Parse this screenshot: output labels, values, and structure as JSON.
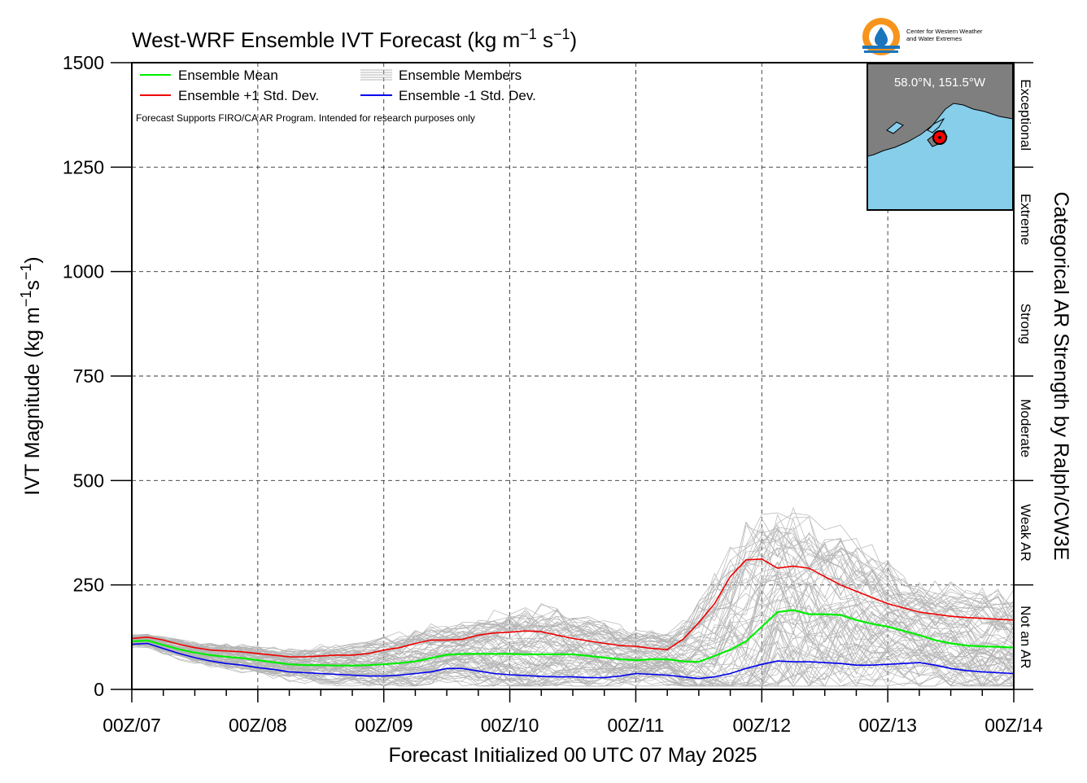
{
  "chart_data": {
    "type": "line",
    "title_main": "West-WRF Ensemble IVT Forecast (kg m",
    "title_exp1": "−1",
    "title_mid": " s",
    "title_exp2": "−1",
    "title_end": ")",
    "xlabel": "Forecast Initialized 00 UTC 07 May 2025",
    "ylabel_main": "IVT Magnitude (kg m",
    "ylabel_exp1": "−1",
    "ylabel_mid": "s",
    "ylabel_exp2": "−1",
    "ylabel_end": ")",
    "right_label": "Categorical AR Strength by Ralph/CW3E",
    "note": "Forecast Supports FIRO/CA AR Program. Intended for research purposes only",
    "xlim": [
      0,
      168
    ],
    "ylim": [
      0,
      1500
    ],
    "x_major_ticks": [
      0,
      24,
      48,
      72,
      96,
      120,
      144,
      168
    ],
    "x_tick_labels": [
      "00Z/07",
      "00Z/08",
      "00Z/09",
      "00Z/10",
      "00Z/11",
      "00Z/12",
      "00Z/13",
      "00Z/14"
    ],
    "x_minor_step": 6,
    "y_ticks": [
      0,
      250,
      500,
      750,
      1000,
      1250,
      1500
    ],
    "y_tick_labels": [
      "0",
      "250",
      "500",
      "750",
      "1000",
      "1250",
      "1500"
    ],
    "grid": true,
    "legend_position": "top-left",
    "legend": [
      {
        "label": "Ensemble Mean",
        "color": "#00ee00"
      },
      {
        "label": "Ensemble +1 Std. Dev.",
        "color": "#ee0000"
      },
      {
        "label": "Ensemble Members",
        "color": "#b4b4b4"
      },
      {
        "label": "Ensemble -1 Std. Dev.",
        "color": "#0000ee"
      }
    ],
    "categories": [
      {
        "label": "Not an AR",
        "range": [
          0,
          250
        ]
      },
      {
        "label": "Weak AR",
        "range": [
          250,
          500
        ]
      },
      {
        "label": "Moderate",
        "range": [
          500,
          750
        ]
      },
      {
        "label": "Strong",
        "range": [
          750,
          1000
        ]
      },
      {
        "label": "Extreme",
        "range": [
          1000,
          1250
        ]
      },
      {
        "label": "Exceptional",
        "range": [
          1250,
          1500
        ]
      }
    ],
    "x": [
      0,
      3,
      6,
      9,
      12,
      15,
      18,
      21,
      24,
      27,
      30,
      33,
      36,
      39,
      42,
      45,
      48,
      51,
      54,
      57,
      60,
      63,
      66,
      69,
      72,
      75,
      78,
      81,
      84,
      87,
      90,
      93,
      96,
      99,
      102,
      105,
      108,
      111,
      114,
      117,
      120,
      123,
      126,
      129,
      132,
      135,
      138,
      141,
      144,
      147,
      150,
      153,
      156,
      159,
      162,
      165,
      168
    ],
    "series": [
      {
        "name": "Ensemble Mean",
        "color": "#00ee00",
        "values": [
          115,
          117,
          106,
          96,
          88,
          82,
          78,
          75,
          70,
          65,
          60,
          58,
          58,
          57,
          57,
          58,
          60,
          63,
          67,
          75,
          83,
          85,
          85,
          85,
          85,
          84,
          84,
          84,
          84,
          80,
          76,
          72,
          70,
          72,
          72,
          67,
          66,
          80,
          95,
          115,
          150,
          185,
          190,
          180,
          180,
          178,
          166,
          157,
          150,
          140,
          130,
          118,
          110,
          105,
          103,
          102,
          100
        ]
      },
      {
        "name": "Ensemble +1 Std. Dev.",
        "color": "#ee0000",
        "values": [
          122,
          125,
          118,
          108,
          100,
          94,
          92,
          90,
          86,
          82,
          78,
          78,
          80,
          82,
          82,
          86,
          94,
          100,
          110,
          118,
          118,
          120,
          130,
          135,
          137,
          140,
          138,
          130,
          122,
          116,
          110,
          105,
          103,
          98,
          95,
          120,
          160,
          205,
          270,
          310,
          312,
          290,
          295,
          290,
          270,
          250,
          235,
          220,
          205,
          195,
          185,
          180,
          175,
          172,
          170,
          168,
          166
        ]
      },
      {
        "name": "Ensemble -1 Std. Dev.",
        "color": "#0000ee",
        "values": [
          108,
          110,
          98,
          86,
          76,
          68,
          62,
          58,
          52,
          48,
          42,
          40,
          38,
          36,
          34,
          32,
          32,
          34,
          38,
          42,
          50,
          50,
          44,
          38,
          35,
          33,
          31,
          30,
          30,
          28,
          28,
          32,
          38,
          36,
          34,
          30,
          26,
          30,
          38,
          50,
          60,
          68,
          66,
          66,
          64,
          62,
          58,
          58,
          60,
          62,
          64,
          58,
          50,
          45,
          42,
          40,
          38
        ]
      }
    ]
  },
  "inset_map": {
    "location": "58.0°N, 151.5°W",
    "land_color": "#7f7f7f",
    "ocean_color": "#87ceeb",
    "marker_color": "#ff0000"
  },
  "logo": {
    "line1": "Center for Western Weather",
    "line2": "and Water Extremes",
    "ring_color": "#f7941d",
    "drop_color": "#1b75bc"
  }
}
